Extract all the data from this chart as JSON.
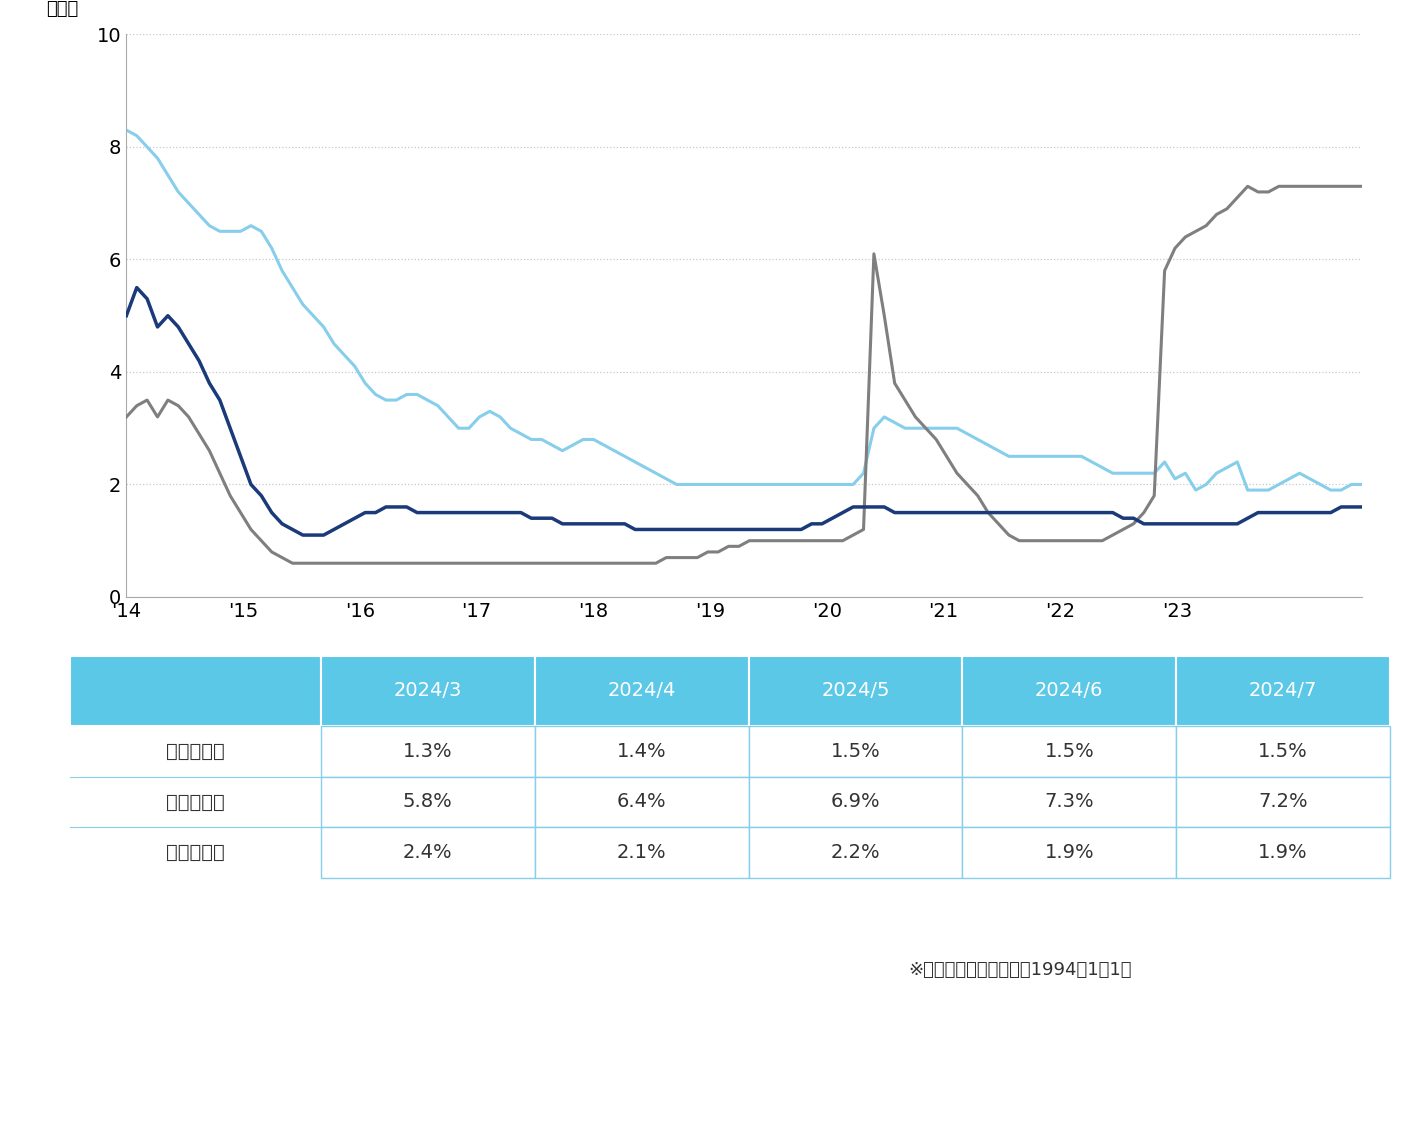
{
  "ylabel": "（％）",
  "ylim": [
    0,
    10
  ],
  "yticks": [
    0,
    2,
    4,
    6,
    8,
    10
  ],
  "x_labels": [
    "'14",
    "'15",
    "'16",
    "'17",
    "'18",
    "'19",
    "'20",
    "'21",
    "'22",
    "'23"
  ],
  "line_colors": {
    "south": "#1a3a7a",
    "north": "#7f7f7f",
    "odori": "#87ceeb"
  },
  "line_labels": {
    "south": "南口エリア",
    "north": "北口エリア",
    "odori": "大通エリア"
  },
  "background_color": "#ffffff",
  "grid_color": "#c8c8c8",
  "south_data": [
    5.0,
    5.5,
    5.3,
    4.8,
    5.0,
    4.8,
    4.5,
    4.2,
    3.8,
    3.5,
    3.0,
    2.5,
    2.0,
    1.8,
    1.5,
    1.3,
    1.2,
    1.1,
    1.1,
    1.1,
    1.2,
    1.3,
    1.4,
    1.5,
    1.5,
    1.6,
    1.6,
    1.6,
    1.5,
    1.5,
    1.5,
    1.5,
    1.5,
    1.5,
    1.5,
    1.5,
    1.5,
    1.5,
    1.5,
    1.4,
    1.4,
    1.4,
    1.3,
    1.3,
    1.3,
    1.3,
    1.3,
    1.3,
    1.3,
    1.2,
    1.2,
    1.2,
    1.2,
    1.2,
    1.2,
    1.2,
    1.2,
    1.2,
    1.2,
    1.2,
    1.2,
    1.2,
    1.2,
    1.2,
    1.2,
    1.2,
    1.3,
    1.3,
    1.4,
    1.5,
    1.6,
    1.6,
    1.6,
    1.6,
    1.5,
    1.5,
    1.5,
    1.5,
    1.5,
    1.5,
    1.5,
    1.5,
    1.5,
    1.5,
    1.5,
    1.5,
    1.5,
    1.5,
    1.5,
    1.5,
    1.5,
    1.5,
    1.5,
    1.5,
    1.5,
    1.5,
    1.4,
    1.4,
    1.3,
    1.3,
    1.3,
    1.3,
    1.3,
    1.3,
    1.3,
    1.3,
    1.3,
    1.3,
    1.4,
    1.5,
    1.5,
    1.5,
    1.5,
    1.5,
    1.5,
    1.5,
    1.5,
    1.6,
    1.6,
    1.6
  ],
  "north_data": [
    3.2,
    3.4,
    3.5,
    3.2,
    3.5,
    3.4,
    3.2,
    2.9,
    2.6,
    2.2,
    1.8,
    1.5,
    1.2,
    1.0,
    0.8,
    0.7,
    0.6,
    0.6,
    0.6,
    0.6,
    0.6,
    0.6,
    0.6,
    0.6,
    0.6,
    0.6,
    0.6,
    0.6,
    0.6,
    0.6,
    0.6,
    0.6,
    0.6,
    0.6,
    0.6,
    0.6,
    0.6,
    0.6,
    0.6,
    0.6,
    0.6,
    0.6,
    0.6,
    0.6,
    0.6,
    0.6,
    0.6,
    0.6,
    0.6,
    0.6,
    0.6,
    0.6,
    0.7,
    0.7,
    0.7,
    0.7,
    0.8,
    0.8,
    0.9,
    0.9,
    1.0,
    1.0,
    1.0,
    1.0,
    1.0,
    1.0,
    1.0,
    1.0,
    1.0,
    1.0,
    1.1,
    1.2,
    6.1,
    5.0,
    3.8,
    3.5,
    3.2,
    3.0,
    2.8,
    2.5,
    2.2,
    2.0,
    1.8,
    1.5,
    1.3,
    1.1,
    1.0,
    1.0,
    1.0,
    1.0,
    1.0,
    1.0,
    1.0,
    1.0,
    1.0,
    1.1,
    1.2,
    1.3,
    1.5,
    1.8,
    5.8,
    6.2,
    6.4,
    6.5,
    6.6,
    6.8,
    6.9,
    7.1,
    7.3,
    7.2,
    7.2,
    7.3,
    7.3,
    7.3,
    7.3,
    7.3,
    7.3,
    7.3,
    7.3,
    7.3
  ],
  "odori_data": [
    8.3,
    8.2,
    8.0,
    7.8,
    7.5,
    7.2,
    7.0,
    6.8,
    6.6,
    6.5,
    6.5,
    6.5,
    6.6,
    6.5,
    6.2,
    5.8,
    5.5,
    5.2,
    5.0,
    4.8,
    4.5,
    4.3,
    4.1,
    3.8,
    3.6,
    3.5,
    3.5,
    3.6,
    3.6,
    3.5,
    3.4,
    3.2,
    3.0,
    3.0,
    3.2,
    3.3,
    3.2,
    3.0,
    2.9,
    2.8,
    2.8,
    2.7,
    2.6,
    2.7,
    2.8,
    2.8,
    2.7,
    2.6,
    2.5,
    2.4,
    2.3,
    2.2,
    2.1,
    2.0,
    2.0,
    2.0,
    2.0,
    2.0,
    2.0,
    2.0,
    2.0,
    2.0,
    2.0,
    2.0,
    2.0,
    2.0,
    2.0,
    2.0,
    2.0,
    2.0,
    2.0,
    2.2,
    3.0,
    3.2,
    3.1,
    3.0,
    3.0,
    3.0,
    3.0,
    3.0,
    3.0,
    2.9,
    2.8,
    2.7,
    2.6,
    2.5,
    2.5,
    2.5,
    2.5,
    2.5,
    2.5,
    2.5,
    2.5,
    2.4,
    2.3,
    2.2,
    2.2,
    2.2,
    2.2,
    2.2,
    2.4,
    2.1,
    2.2,
    1.9,
    2.0,
    2.2,
    2.3,
    2.4,
    1.9,
    1.9,
    1.9,
    2.0,
    2.1,
    2.2,
    2.1,
    2.0,
    1.9,
    1.9,
    2.0,
    2.0
  ],
  "table_headers": [
    "",
    "2024/3",
    "2024/4",
    "2024/5",
    "2024/6",
    "2024/7"
  ],
  "table_rows": [
    [
      "南口エリア",
      "1.3%",
      "1.4%",
      "1.5%",
      "1.5%",
      "1.5%"
    ],
    [
      "北口エリア",
      "5.8%",
      "6.4%",
      "6.9%",
      "7.3%",
      "7.2%"
    ],
    [
      "大通エリア",
      "2.4%",
      "2.1%",
      "2.2%",
      "1.9%",
      "1.9%"
    ]
  ],
  "table_header_bg": "#5bc8e8",
  "table_separator_color": "#87ceeb",
  "footnote": "※統　計　開　始　日：1994年1月1日",
  "num_points": 120,
  "x_start_year": 2014.0,
  "x_end_year": 2024.583
}
